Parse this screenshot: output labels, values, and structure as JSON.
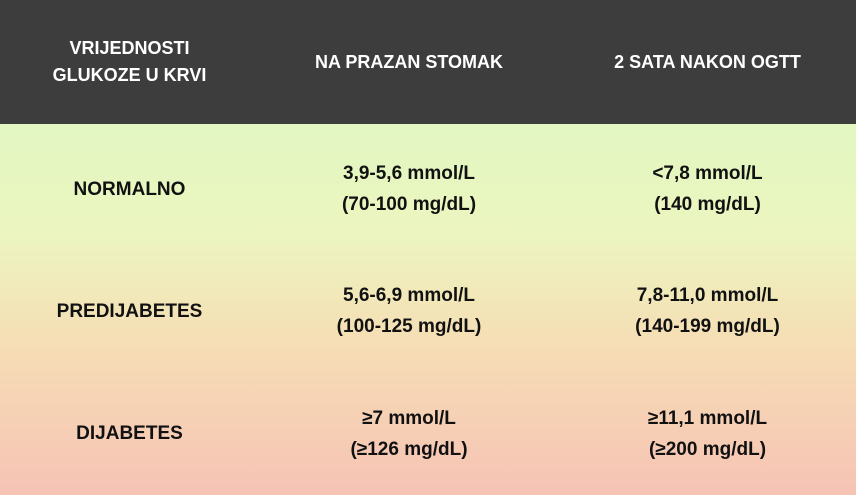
{
  "header": {
    "col1_line1": "VRIJEDNOSTI",
    "col1_line2": "GLUKOZE U KRVI",
    "col2": "NA PRAZAN STOMAK",
    "col3": "2 SATA NAKON OGTT"
  },
  "rows": [
    {
      "label": "NORMALNO",
      "fasting_line1": "3,9-5,6 mmol/L",
      "fasting_line2": "(70-100 mg/dL)",
      "ogtt_line1": "<7,8 mmol/L",
      "ogtt_line2": "(140 mg/dL)"
    },
    {
      "label": "PREDIJABETES",
      "fasting_line1": "5,6-6,9 mmol/L",
      "fasting_line2": "(100-125 mg/dL)",
      "ogtt_line1": "7,8-11,0 mmol/L",
      "ogtt_line2": "(140-199 mg/dL)"
    },
    {
      "label": "DIJABETES",
      "fasting_line1": "≥7 mmol/L",
      "fasting_line2": "(≥126 mg/dL)",
      "ogtt_line1": "≥11,1 mmol/L",
      "ogtt_line2": "(≥200 mg/dL)"
    }
  ],
  "colors": {
    "header_bg": "#3d3d3d",
    "header_text": "#ffffff",
    "gradient_top": "#e2f7c2",
    "gradient_bottom": "#f6c3b5"
  }
}
